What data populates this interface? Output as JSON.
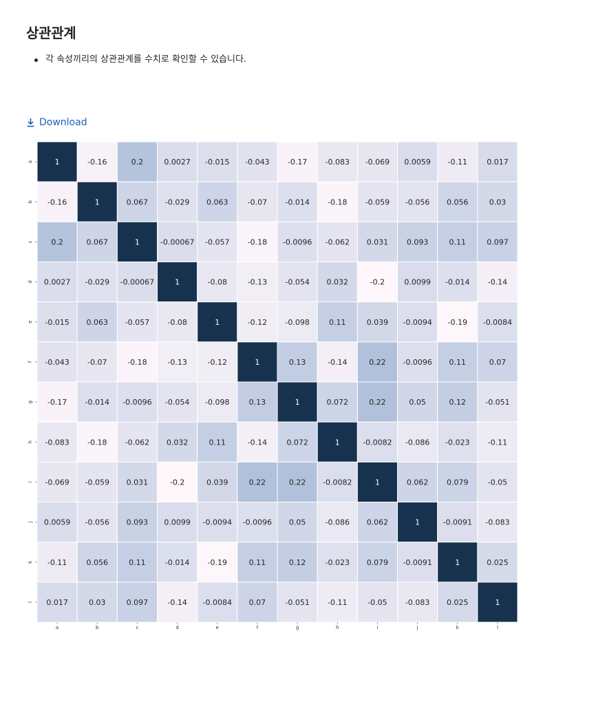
{
  "page": {
    "title": "상관관계",
    "bullets": [
      "각 속성끼리의 상관관계를 수치로 확인할 수 있습니다."
    ],
    "download_label": "Download"
  },
  "colors": {
    "link": "#1f5fb4",
    "scale_low": "#fff7fb",
    "scale_mid": "#b1c1dc",
    "scale_high": "#17324f"
  },
  "chart_data": {
    "type": "heatmap",
    "title": "",
    "xlabel": "",
    "ylabel": "",
    "x_labels": [
      "a",
      "b",
      "c",
      "d",
      "e",
      "f",
      "g",
      "h",
      "i",
      "j",
      "k",
      "l"
    ],
    "y_labels": [
      "a",
      "b",
      "c",
      "d",
      "e",
      "f",
      "g",
      "h",
      "i",
      "j",
      "k",
      "l"
    ],
    "color_range": [
      -0.2,
      1
    ],
    "colorbar": false,
    "values": [
      [
        "1",
        "-0.16",
        "0.2",
        "0.0027",
        "-0.015",
        "-0.043",
        "-0.17",
        "-0.083",
        "-0.069",
        "0.0059",
        "-0.11",
        "0.017"
      ],
      [
        "-0.16",
        "1",
        "0.067",
        "-0.029",
        "0.063",
        "-0.07",
        "-0.014",
        "-0.18",
        "-0.059",
        "-0.056",
        "0.056",
        "0.03"
      ],
      [
        "0.2",
        "0.067",
        "1",
        "-0.00067",
        "-0.057",
        "-0.18",
        "-0.0096",
        "-0.062",
        "0.031",
        "0.093",
        "0.11",
        "0.097"
      ],
      [
        "0.0027",
        "-0.029",
        "-0.00067",
        "1",
        "-0.08",
        "-0.13",
        "-0.054",
        "0.032",
        "-0.2",
        "0.0099",
        "-0.014",
        "-0.14"
      ],
      [
        "-0.015",
        "0.063",
        "-0.057",
        "-0.08",
        "1",
        "-0.12",
        "-0.098",
        "0.11",
        "0.039",
        "-0.0094",
        "-0.19",
        "-0.0084"
      ],
      [
        "-0.043",
        "-0.07",
        "-0.18",
        "-0.13",
        "-0.12",
        "1",
        "0.13",
        "-0.14",
        "0.22",
        "-0.0096",
        "0.11",
        "0.07"
      ],
      [
        "-0.17",
        "-0.014",
        "-0.0096",
        "-0.054",
        "-0.098",
        "0.13",
        "1",
        "0.072",
        "0.22",
        "0.05",
        "0.12",
        "-0.051"
      ],
      [
        "-0.083",
        "-0.18",
        "-0.062",
        "0.032",
        "0.11",
        "-0.14",
        "0.072",
        "1",
        "-0.0082",
        "-0.086",
        "-0.023",
        "-0.11"
      ],
      [
        "-0.069",
        "-0.059",
        "0.031",
        "-0.2",
        "0.039",
        "0.22",
        "0.22",
        "-0.0082",
        "1",
        "0.062",
        "0.079",
        "-0.05"
      ],
      [
        "0.0059",
        "-0.056",
        "0.093",
        "0.0099",
        "-0.0094",
        "-0.0096",
        "0.05",
        "-0.086",
        "0.062",
        "1",
        "-0.0091",
        "-0.083"
      ],
      [
        "-0.11",
        "0.056",
        "0.11",
        "-0.014",
        "-0.19",
        "0.11",
        "0.12",
        "-0.023",
        "0.079",
        "-0.0091",
        "1",
        "0.025"
      ],
      [
        "0.017",
        "0.03",
        "0.097",
        "-0.14",
        "-0.0084",
        "0.07",
        "-0.051",
        "-0.11",
        "-0.05",
        "-0.083",
        "0.025",
        "1"
      ]
    ]
  }
}
